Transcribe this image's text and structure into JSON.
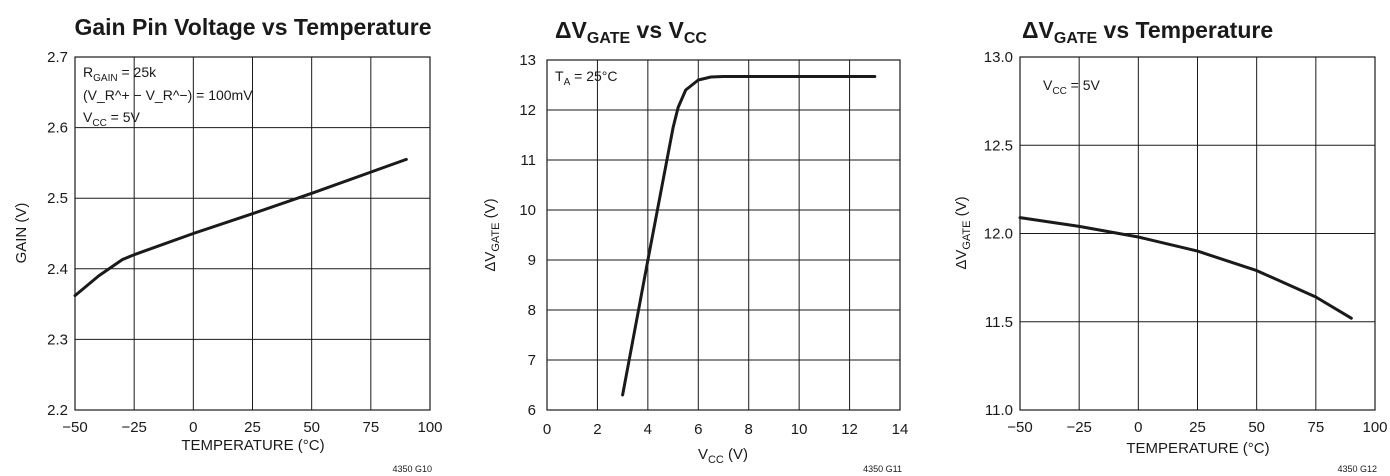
{
  "chart_data": [
    {
      "type": "line",
      "title": "Gain Pin Voltage vs Temperature",
      "xlabel": "TEMPERATURE (°C)",
      "ylabel": "GAIN (V)",
      "xlim": [
        -50,
        100
      ],
      "ylim": [
        2.2,
        2.7
      ],
      "xticks": [
        -50,
        -25,
        0,
        25,
        50,
        75,
        100
      ],
      "yticks": [
        2.2,
        2.3,
        2.4,
        2.5,
        2.6,
        2.7
      ],
      "ytick_labels": [
        "2.2",
        "2.3",
        "2.4",
        "2.5",
        "2.6",
        "2.7"
      ],
      "grid": true,
      "series": [
        {
          "x": [
            -50,
            -40,
            -30,
            -25,
            0,
            25,
            50,
            75,
            90
          ],
          "y": [
            2.362,
            2.39,
            2.413,
            2.42,
            2.45,
            2.478,
            2.507,
            2.537,
            2.555
          ]
        }
      ],
      "annotations": [
        {
          "base": "R",
          "sub": "GAIN",
          "rest": " = 25k"
        },
        {
          "text": "(V_R^+ − V_R^−) = 100mV"
        },
        {
          "base": "V",
          "sub": "CC",
          "rest": " = 5V"
        }
      ],
      "code": "4350 G10"
    },
    {
      "type": "line",
      "title": "ΔV_GATE vs V_CC",
      "xlabel": "V_CC (V)",
      "ylabel": "ΔV_GATE (V)",
      "xlim": [
        0,
        14
      ],
      "ylim": [
        6,
        13
      ],
      "xticks": [
        0,
        2,
        4,
        6,
        8,
        10,
        12,
        14
      ],
      "yticks": [
        6,
        7,
        8,
        9,
        10,
        11,
        12,
        13
      ],
      "ytick_labels": [
        "6",
        "7",
        "8",
        "9",
        "10",
        "11",
        "12",
        "13"
      ],
      "grid": true,
      "series": [
        {
          "x": [
            3,
            4,
            5,
            5.2,
            5.5,
            6,
            6.5,
            7,
            8,
            10,
            12,
            13
          ],
          "y": [
            6.3,
            9.0,
            11.65,
            12.05,
            12.4,
            12.6,
            12.66,
            12.67,
            12.67,
            12.67,
            12.67,
            12.67
          ]
        }
      ],
      "annotations": [
        {
          "base": "T",
          "sub": "A",
          "rest": " = 25°C"
        }
      ],
      "code": "4350 G11"
    },
    {
      "type": "line",
      "title": "ΔV_GATE vs Temperature",
      "xlabel": "TEMPERATURE (°C)",
      "ylabel": "ΔV_GATE (V)",
      "xlim": [
        -50,
        100
      ],
      "ylim": [
        11.0,
        13.0
      ],
      "xticks": [
        -50,
        -25,
        0,
        25,
        50,
        75,
        100
      ],
      "yticks": [
        11.0,
        11.5,
        12.0,
        12.5,
        13.0
      ],
      "ytick_labels": [
        "11.0",
        "11.5",
        "12.0",
        "12.5",
        "13.0"
      ],
      "grid": true,
      "series": [
        {
          "x": [
            -50,
            -25,
            0,
            25,
            50,
            75,
            90
          ],
          "y": [
            12.09,
            12.04,
            11.98,
            11.9,
            11.79,
            11.64,
            11.52
          ]
        }
      ],
      "annotations": [
        {
          "base": "V",
          "sub": "CC",
          "rest": " = 5V"
        }
      ],
      "code": "4350 G12"
    }
  ]
}
